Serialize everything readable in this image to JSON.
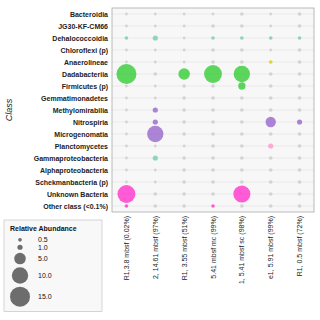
{
  "chart_data": {
    "type": "bubble",
    "y_label": "Class",
    "grid": true,
    "categories": [
      "R1,3.8 mbsf (0.02%)",
      "2, 14.61 mbsf (97%)",
      "R1, 3.55 mbsf (51%)",
      "5.41 mbsf mc (99%)",
      "1, 5.41 mbsf sc (98%)",
      "e1, 5.91 mbsf (99%)",
      "R1, 0.5 mbsf (72%)"
    ],
    "y_categories": [
      "Bacteroidia",
      "JG30-KF-CM66",
      "Dehalococcoidia",
      "Chloroflexi (p)",
      "Anaerolineae",
      "Dadabacteriia",
      "Firmicutes (p)",
      "Gemmatimonadetes",
      "Methylomirabilia",
      "Nitrospiria",
      "Microgenomatia",
      "Planctomycetes",
      "Gammaproteobacteria",
      "Alphaproteobacteria",
      "Schekmanbacteria (p)",
      "Unknown Bacteria",
      "Other class (<0.1%)"
    ],
    "sizes": [
      [
        0.3,
        0.3,
        0.3,
        0.3,
        0.5,
        0.3,
        0.5
      ],
      [
        0.3,
        0.3,
        0.3,
        0.5,
        0.5,
        0.3,
        0.5
      ],
      [
        0.5,
        1.0,
        0.3,
        0.5,
        0.5,
        0.5,
        0.5
      ],
      [
        0.3,
        0.3,
        0.3,
        0.5,
        0.5,
        0.3,
        0.5
      ],
      [
        0.3,
        0.3,
        0.3,
        0.5,
        0.5,
        0.5,
        0.5
      ],
      [
        15.0,
        0.5,
        5.0,
        12.0,
        10.0,
        0.5,
        0.5
      ],
      [
        0.3,
        0.3,
        0.5,
        0.5,
        2.0,
        0.5,
        0.5
      ],
      [
        0.3,
        0.3,
        0.5,
        0.5,
        0.5,
        0.5,
        0.5
      ],
      [
        0.3,
        1.0,
        0.5,
        0.5,
        0.5,
        0.5,
        0.5
      ],
      [
        0.3,
        1.0,
        0.5,
        0.5,
        0.5,
        4.0,
        1.0
      ],
      [
        0.3,
        10.0,
        0.5,
        0.5,
        0.5,
        0.5,
        0.5
      ],
      [
        0.3,
        0.3,
        0.3,
        0.5,
        0.5,
        1.0,
        0.5
      ],
      [
        0.3,
        1.0,
        0.5,
        0.5,
        0.5,
        0.5,
        0.5
      ],
      [
        0.3,
        0.3,
        0.5,
        0.5,
        0.5,
        0.5,
        0.5
      ],
      [
        0.3,
        0.3,
        0.5,
        0.5,
        0.5,
        0.5,
        0.5
      ],
      [
        12.0,
        0.5,
        0.5,
        0.5,
        11.0,
        0.5,
        0.5
      ],
      [
        0.5,
        0.5,
        0.5,
        0.5,
        0.5,
        0.5,
        0.5
      ]
    ],
    "colors": [
      [
        "#cccccc",
        "#cccccc",
        "#cccccc",
        "#cccccc",
        "#cccccc",
        "#cccccc",
        "#cccccc"
      ],
      [
        "#cccccc",
        "#cccccc",
        "#cccccc",
        "#cccccc",
        "#cccccc",
        "#cccccc",
        "#cccccc"
      ],
      [
        "#77ccaa",
        "#77ccaa",
        "#cccccc",
        "#77ccaa",
        "#77ccaa",
        "#77ccaa",
        "#77ccaa"
      ],
      [
        "#cccccc",
        "#cccccc",
        "#cccccc",
        "#cccccc",
        "#cccccc",
        "#cccccc",
        "#cccccc"
      ],
      [
        "#cccccc",
        "#cccccc",
        "#cccccc",
        "#cccccc",
        "#cccccc",
        "#ddcc00",
        "#cccccc"
      ],
      [
        "#33cc33",
        "#cccccc",
        "#33cc33",
        "#33cc33",
        "#33cc33",
        "#cccccc",
        "#cccccc"
      ],
      [
        "#cccccc",
        "#cccccc",
        "#cccccc",
        "#cccccc",
        "#33cc33",
        "#cccccc",
        "#cccccc"
      ],
      [
        "#cccccc",
        "#cccccc",
        "#cccccc",
        "#cccccc",
        "#cccccc",
        "#cccccc",
        "#cccccc"
      ],
      [
        "#cccccc",
        "#9966cc",
        "#cccccc",
        "#cccccc",
        "#cccccc",
        "#cccccc",
        "#cccccc"
      ],
      [
        "#cccccc",
        "#9966cc",
        "#cccccc",
        "#cccccc",
        "#cccccc",
        "#9966cc",
        "#9966cc"
      ],
      [
        "#cccccc",
        "#9966cc",
        "#cccccc",
        "#cccccc",
        "#cccccc",
        "#cccccc",
        "#cccccc"
      ],
      [
        "#cccccc",
        "#cccccc",
        "#cccccc",
        "#cccccc",
        "#cccccc",
        "#ff99cc",
        "#cccccc"
      ],
      [
        "#cccccc",
        "#77ccaa",
        "#cccccc",
        "#cccccc",
        "#cccccc",
        "#cccccc",
        "#cccccc"
      ],
      [
        "#cccccc",
        "#cccccc",
        "#cccccc",
        "#cccccc",
        "#cccccc",
        "#cccccc",
        "#cccccc"
      ],
      [
        "#cccccc",
        "#cccccc",
        "#cccccc",
        "#cccccc",
        "#cccccc",
        "#cccccc",
        "#cccccc"
      ],
      [
        "#ff33cc",
        "#cccccc",
        "#cccccc",
        "#cccccc",
        "#ff33cc",
        "#cccccc",
        "#cccccc"
      ],
      [
        "#ff33cc",
        "#cccccc",
        "#cccccc",
        "#ff33cc",
        "#cccccc",
        "#cccccc",
        "#cccccc"
      ]
    ],
    "size_legend": {
      "title": "Relative Abundance",
      "values": [
        0.5,
        1.0,
        5.0,
        10.0,
        15.0
      ],
      "value_labels": [
        "0.5",
        "1.0",
        "5.0",
        "10.0",
        "15.0"
      ]
    }
  }
}
